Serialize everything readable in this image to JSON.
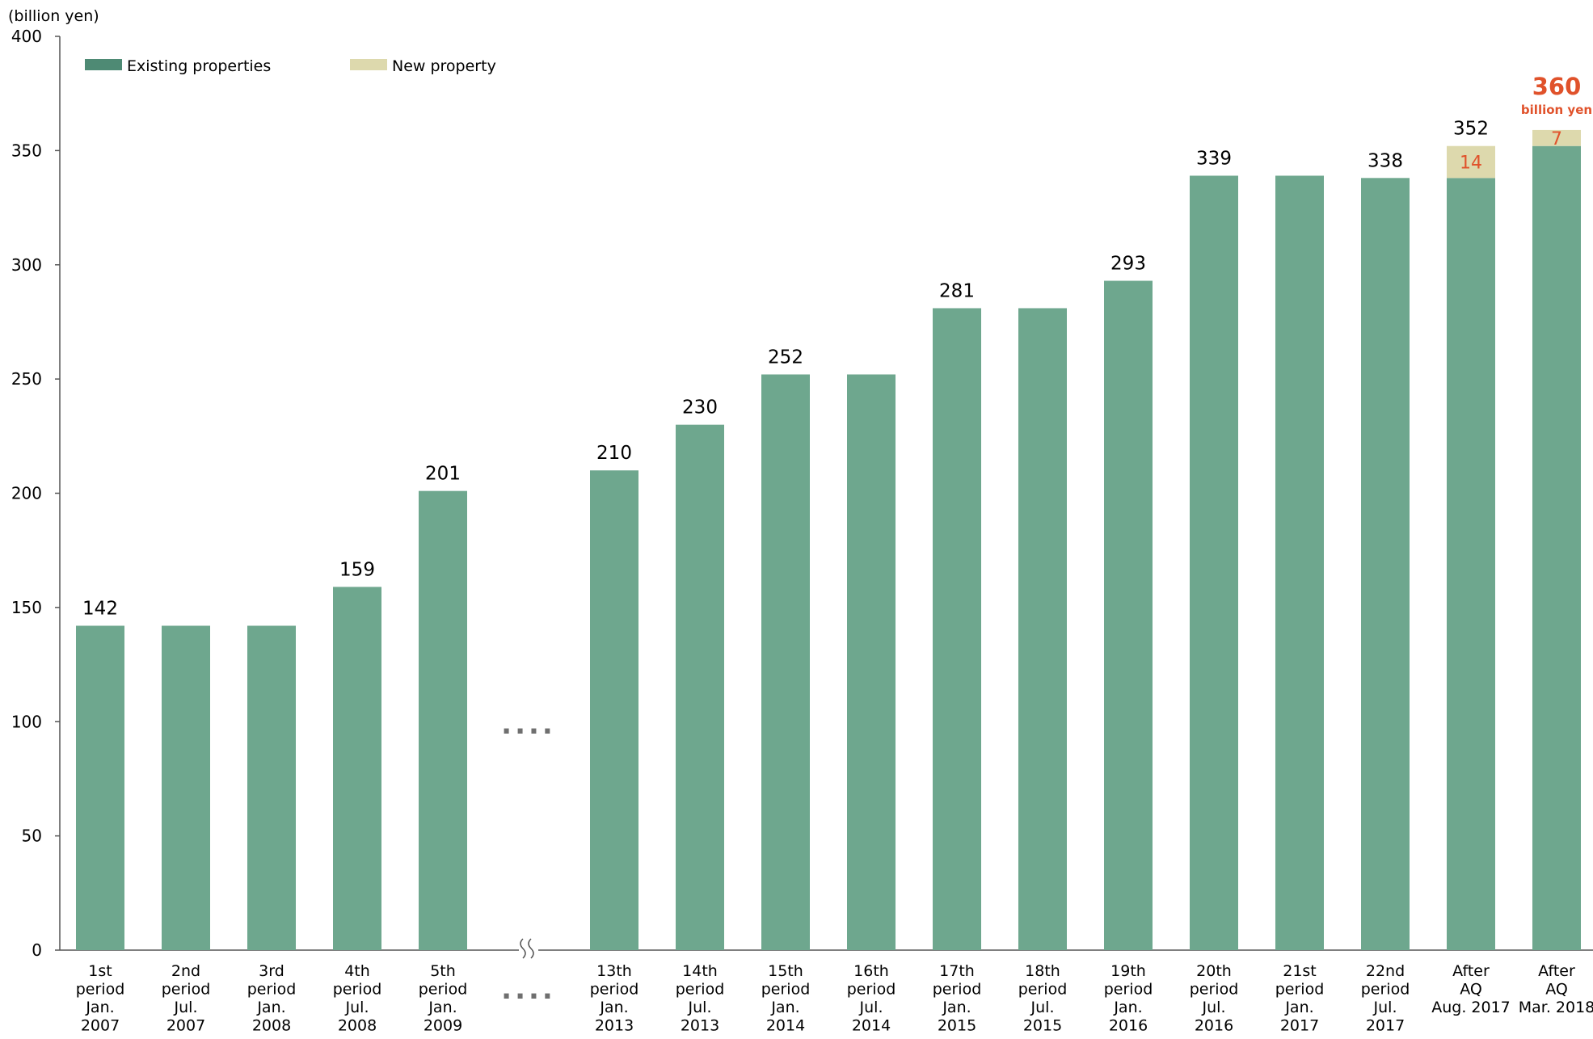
{
  "chart_data": {
    "type": "bar",
    "unit_label": "(billion yen)",
    "y_axis": {
      "min": 0,
      "max": 400,
      "ticks": [
        0,
        50,
        100,
        150,
        200,
        250,
        300,
        350,
        400
      ]
    },
    "legend": {
      "placement": "top",
      "items": [
        {
          "name": "Existing properties",
          "color": "#4e8a74"
        },
        {
          "name": "New property",
          "color": "#ddd9ad"
        }
      ]
    },
    "colors": {
      "existing": "#6ea78e",
      "new": "#ddd9ad",
      "highlight": "#e0522b",
      "axis": "#555555",
      "gap": "#6f6f6f"
    },
    "categories": [
      {
        "lines": [
          "1st",
          "period",
          "Jan.",
          "2007"
        ]
      },
      {
        "lines": [
          "2nd",
          "period",
          "Jul.",
          "2007"
        ]
      },
      {
        "lines": [
          "3rd",
          "period",
          "Jan.",
          "2008"
        ]
      },
      {
        "lines": [
          "4th",
          "period",
          "Jul.",
          "2008"
        ]
      },
      {
        "lines": [
          "5th",
          "period",
          "Jan.",
          "2009"
        ]
      },
      {
        "lines": [
          "13th",
          "period",
          "Jan.",
          "2013"
        ]
      },
      {
        "lines": [
          "14th",
          "period",
          "Jul.",
          "2013"
        ]
      },
      {
        "lines": [
          "15th",
          "period",
          "Jan.",
          "2014"
        ]
      },
      {
        "lines": [
          "16th",
          "period",
          "Jul.",
          "2014"
        ]
      },
      {
        "lines": [
          "17th",
          "period",
          "Jan.",
          "2015"
        ]
      },
      {
        "lines": [
          "18th",
          "period",
          "Jul.",
          "2015"
        ]
      },
      {
        "lines": [
          "19th",
          "period",
          "Jan.",
          "2016"
        ]
      },
      {
        "lines": [
          "20th",
          "period",
          "Jul.",
          "2016"
        ]
      },
      {
        "lines": [
          "21st",
          "period",
          "Jan.",
          "2017"
        ]
      },
      {
        "lines": [
          "22nd",
          "period",
          "Jul.",
          "2017"
        ]
      },
      {
        "lines": [
          "After",
          "AQ",
          "Aug. 2017"
        ]
      },
      {
        "lines": [
          "After",
          "AQ",
          "Mar. 2018"
        ]
      }
    ],
    "series": [
      {
        "name": "Existing properties",
        "values": [
          142,
          142,
          142,
          159,
          201,
          210,
          230,
          252,
          252,
          281,
          281,
          293,
          339,
          339,
          338,
          338,
          352
        ]
      },
      {
        "name": "New property",
        "values": [
          0,
          0,
          0,
          0,
          0,
          0,
          0,
          0,
          0,
          0,
          0,
          0,
          0,
          0,
          0,
          14,
          7
        ]
      }
    ],
    "total_labels": [
      "142",
      "",
      "",
      "159",
      "201",
      "210",
      "230",
      "252",
      "",
      "281",
      "",
      "293",
      "339",
      "",
      "338",
      "352",
      ""
    ],
    "new_labels": [
      "",
      "",
      "",
      "",
      "",
      "",
      "",
      "",
      "",
      "",
      "",
      "",
      "",
      "",
      "",
      "14",
      "7"
    ],
    "highlight": {
      "value": "360",
      "unit": "billion yen"
    },
    "axis_break": {
      "after_category": 5,
      "marker": "≈",
      "dots": "...."
    }
  }
}
